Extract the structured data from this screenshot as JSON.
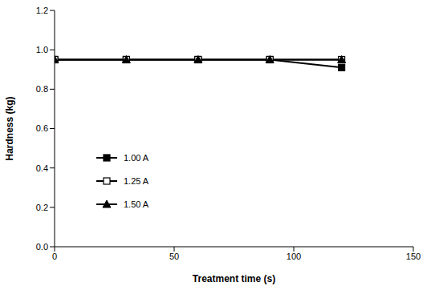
{
  "chart_data": {
    "type": "line",
    "x_label": "Treatment time (s)",
    "y_label": "Hardness (kg)",
    "x": [
      0,
      30,
      60,
      90,
      120
    ],
    "series": [
      {
        "name": "1.00 A",
        "color": "#000000",
        "marker": "filled_square",
        "values": [
          0.95,
          0.95,
          0.95,
          0.95,
          0.91
        ]
      },
      {
        "name": "1.25 A",
        "color": "#000000",
        "marker": "open_square",
        "values": [
          0.95,
          0.95,
          0.95,
          0.95,
          0.95
        ]
      },
      {
        "name": "1.50 A",
        "color": "#000000",
        "marker": "triangle",
        "values": [
          0.95,
          0.95,
          0.95,
          0.95,
          0.95
        ]
      }
    ],
    "xlim": [
      0,
      150
    ],
    "xticks": [
      0,
      50,
      100,
      150
    ],
    "ylim": [
      0,
      1.2
    ],
    "yticks": [
      {
        "value": 0,
        "label": "0.0"
      },
      0.2,
      0.4,
      0.6,
      0.8,
      {
        "value": 1,
        "label": "1.0"
      },
      1.2
    ],
    "grid": false,
    "legend": "lower left"
  }
}
